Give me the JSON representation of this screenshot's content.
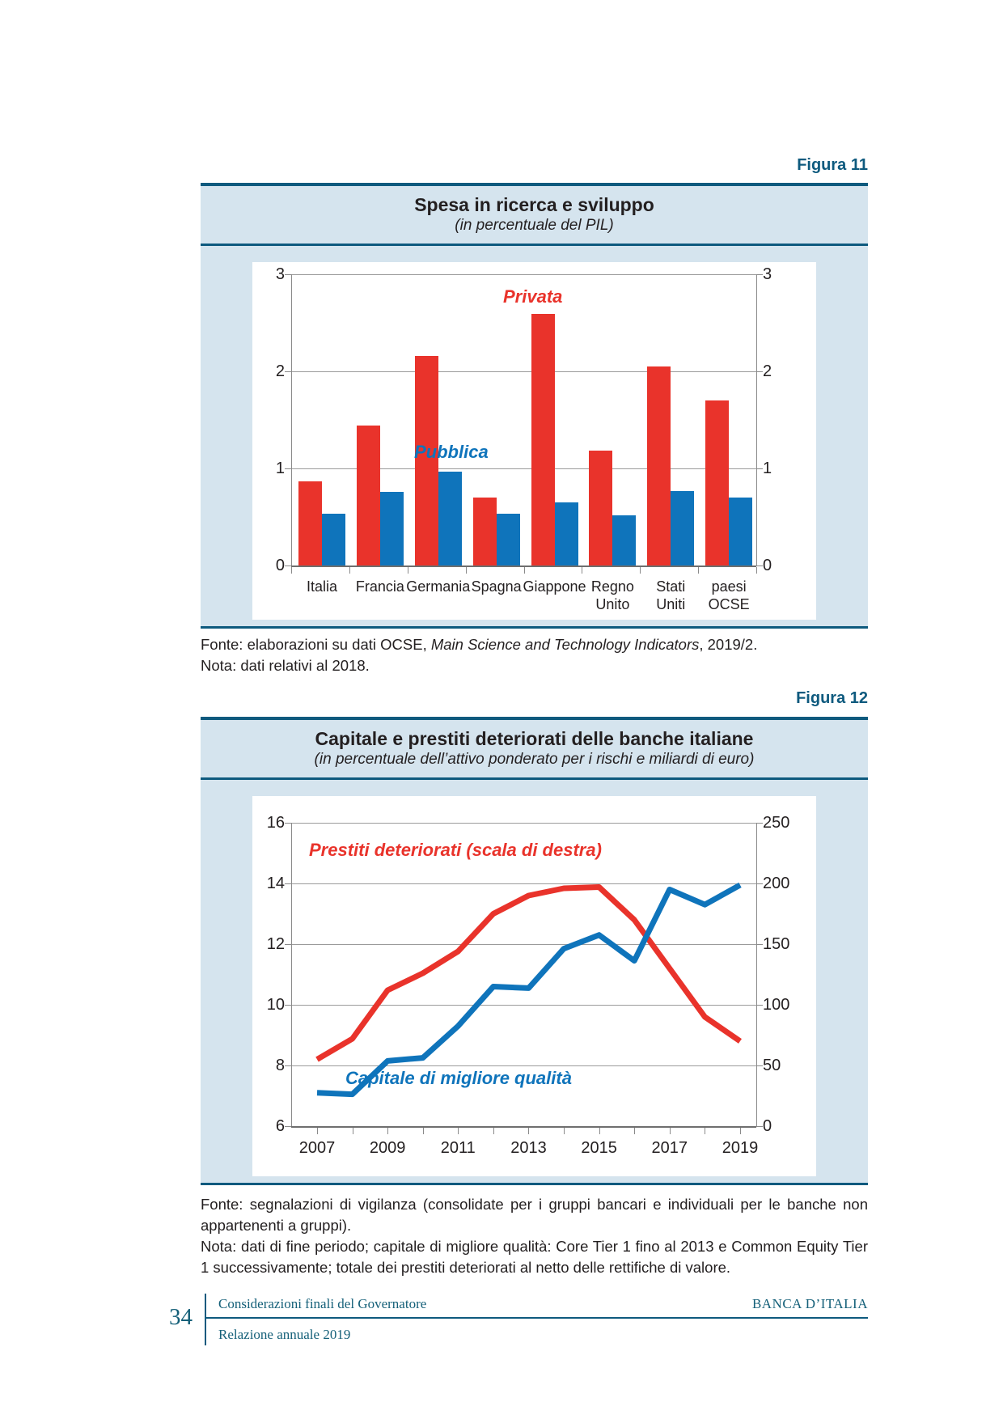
{
  "colors": {
    "teal": "#0e5a7e",
    "panel_blue": "#d5e4ee",
    "red": "#e9332b",
    "blue": "#0f74bb"
  },
  "figura11": {
    "label": "Figura 11",
    "title": "Spesa in ricerca e sviluppo",
    "subtitle": "(in percentuale del PIL)",
    "fonte": {
      "prefix": "Fonte: elaborazioni su dati OCSE, ",
      "italic": "Main Science and Technology Indicators",
      "suffix": ", 2019/2."
    },
    "nota": "Nota: dati relativi al 2018.",
    "chart_data": {
      "type": "bar",
      "categories": [
        [
          "Italia"
        ],
        [
          "Francia"
        ],
        [
          "Germania"
        ],
        [
          "Spagna"
        ],
        [
          "Giappone"
        ],
        [
          "Regno",
          "Unito"
        ],
        [
          "Stati",
          "Uniti"
        ],
        [
          "paesi",
          "OCSE"
        ]
      ],
      "series": [
        {
          "name": "Privata",
          "color": "#e9332b",
          "values": [
            0.87,
            1.44,
            2.16,
            0.7,
            2.59,
            1.18,
            2.05,
            1.7
          ]
        },
        {
          "name": "Pubblica",
          "color": "#0f74bb",
          "values": [
            0.53,
            0.76,
            0.97,
            0.53,
            0.65,
            0.52,
            0.77,
            0.7
          ]
        }
      ],
      "ylim": [
        0,
        3
      ],
      "yticks": [
        0,
        1,
        2,
        3
      ],
      "grid": true,
      "annotations": [
        {
          "text": "Privata",
          "color": "#e9332b"
        },
        {
          "text": "Pubblica",
          "color": "#0f74bb"
        }
      ]
    }
  },
  "figura12": {
    "label": "Figura 12",
    "title": "Capitale e prestiti deteriorati delle banche italiane",
    "subtitle": "(in percentuale dell’attivo ponderato per i rischi e miliardi di euro)",
    "fonte": "Fonte: segnalazioni di vigilanza (consolidate per i gruppi bancari e individuali per le banche non appartenenti a gruppi).",
    "nota": "Nota: dati di fine periodo; capitale di migliore qualità: Core Tier 1 fino al 2013 e Common Equity Tier 1 successivamente; totale dei prestiti deteriorati al netto delle rettifiche di valore.",
    "chart_data": {
      "type": "line",
      "x": [
        2007,
        2008,
        2009,
        2010,
        2011,
        2012,
        2013,
        2014,
        2015,
        2016,
        2017,
        2018,
        2019
      ],
      "xticks": [
        2007,
        2009,
        2011,
        2013,
        2015,
        2017,
        2019
      ],
      "series": [
        {
          "name": "Prestiti deteriorati (scala di destra)",
          "axis": "right",
          "color": "#e9332b",
          "values": [
            55,
            72,
            112,
            126,
            144,
            175,
            190,
            196,
            197,
            170,
            130,
            90,
            70
          ]
        },
        {
          "name": "Capitale di migliore qualità",
          "axis": "left",
          "color": "#0f74bb",
          "values": [
            7.1,
            7.05,
            8.15,
            8.25,
            9.3,
            10.6,
            10.55,
            11.85,
            12.3,
            11.45,
            13.8,
            13.3,
            13.95
          ]
        }
      ],
      "left_ylim": [
        6,
        16
      ],
      "left_yticks": [
        6,
        8,
        10,
        12,
        14,
        16
      ],
      "right_ylim": [
        0,
        250
      ],
      "right_yticks": [
        0,
        50,
        100,
        150,
        200,
        250
      ],
      "grid": true,
      "annotations": [
        {
          "text": "Prestiti deteriorati (scala di destra)",
          "color": "#e9332b"
        },
        {
          "text": "Capitale di migliore qualità",
          "color": "#0f74bb"
        }
      ]
    }
  },
  "footer": {
    "page_number": "34",
    "left_top": "Considerazioni finali del Governatore",
    "left_bottom": "Relazione annuale 2019",
    "right": "BANCA D’ITALIA"
  }
}
